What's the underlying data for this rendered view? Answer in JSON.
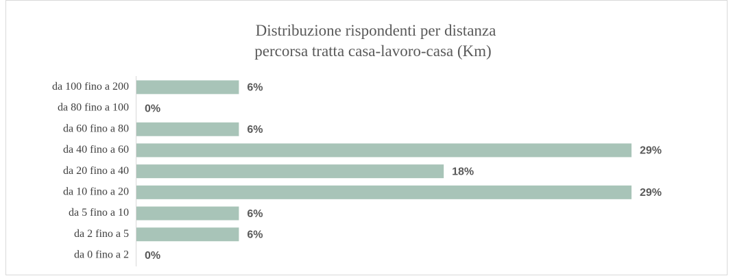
{
  "chart_data": {
    "type": "hbar",
    "title": [
      "Distribuzione rispondenti per  distanza",
      "percorsa tratta casa-lavoro-casa (Km)"
    ],
    "categories": [
      "da 100 fino a 200",
      "da 80 fino a 100",
      "da 60 fino a 80",
      "da 40 fino a 60",
      "da 20 fino a 40",
      "da 10 fino a 20",
      "da 5 fino a 10",
      "da 2 fino a 5",
      "da 0 fino a 2"
    ],
    "values": [
      6,
      0,
      6,
      29,
      18,
      29,
      6,
      6,
      0
    ],
    "value_labels": [
      "6%",
      "0%",
      "6%",
      "29%",
      "18%",
      "29%",
      "6%",
      "6%",
      "0%"
    ],
    "color": "#a8c4b8"
  }
}
